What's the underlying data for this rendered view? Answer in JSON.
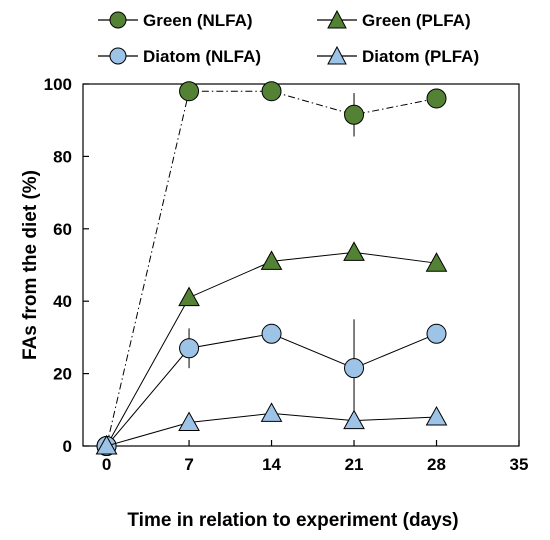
{
  "chart_data": {
    "type": "line",
    "xlabel": "Time in relation to experiment (days)",
    "ylabel": "FAs from the diet (%)",
    "xlim": [
      -2,
      35
    ],
    "ylim": [
      0,
      100
    ],
    "xticks": [
      0,
      7,
      14,
      21,
      28,
      35
    ],
    "yticks": [
      0,
      20,
      40,
      60,
      80,
      100
    ],
    "x": [
      0,
      7,
      14,
      21,
      28
    ],
    "legend_position": "top",
    "grid": false,
    "series": [
      {
        "name": "Green (NLFA)",
        "marker": "circle",
        "color": "#548235",
        "line": "dash-dot",
        "values": [
          0,
          98,
          98,
          91.5,
          96
        ],
        "error": [
          0,
          0,
          0,
          6,
          0
        ]
      },
      {
        "name": "Green (PLFA)",
        "marker": "triangle",
        "color": "#548235",
        "line": "solid",
        "values": [
          0,
          41,
          51,
          53.5,
          50.5
        ],
        "error": [
          0,
          0,
          0,
          1.5,
          0
        ]
      },
      {
        "name": "Diatom (NLFA)",
        "marker": "circle",
        "color": "#9DC3E6",
        "line": "solid",
        "values": [
          0,
          27,
          31,
          21.5,
          31
        ],
        "error": [
          0,
          5.5,
          0,
          13.5,
          0
        ]
      },
      {
        "name": "Diatom (PLFA)",
        "marker": "triangle",
        "color": "#9DC3E6",
        "line": "solid",
        "values": [
          0,
          6.5,
          9,
          7,
          8
        ],
        "error": [
          0,
          0,
          0,
          0,
          0
        ]
      }
    ]
  }
}
